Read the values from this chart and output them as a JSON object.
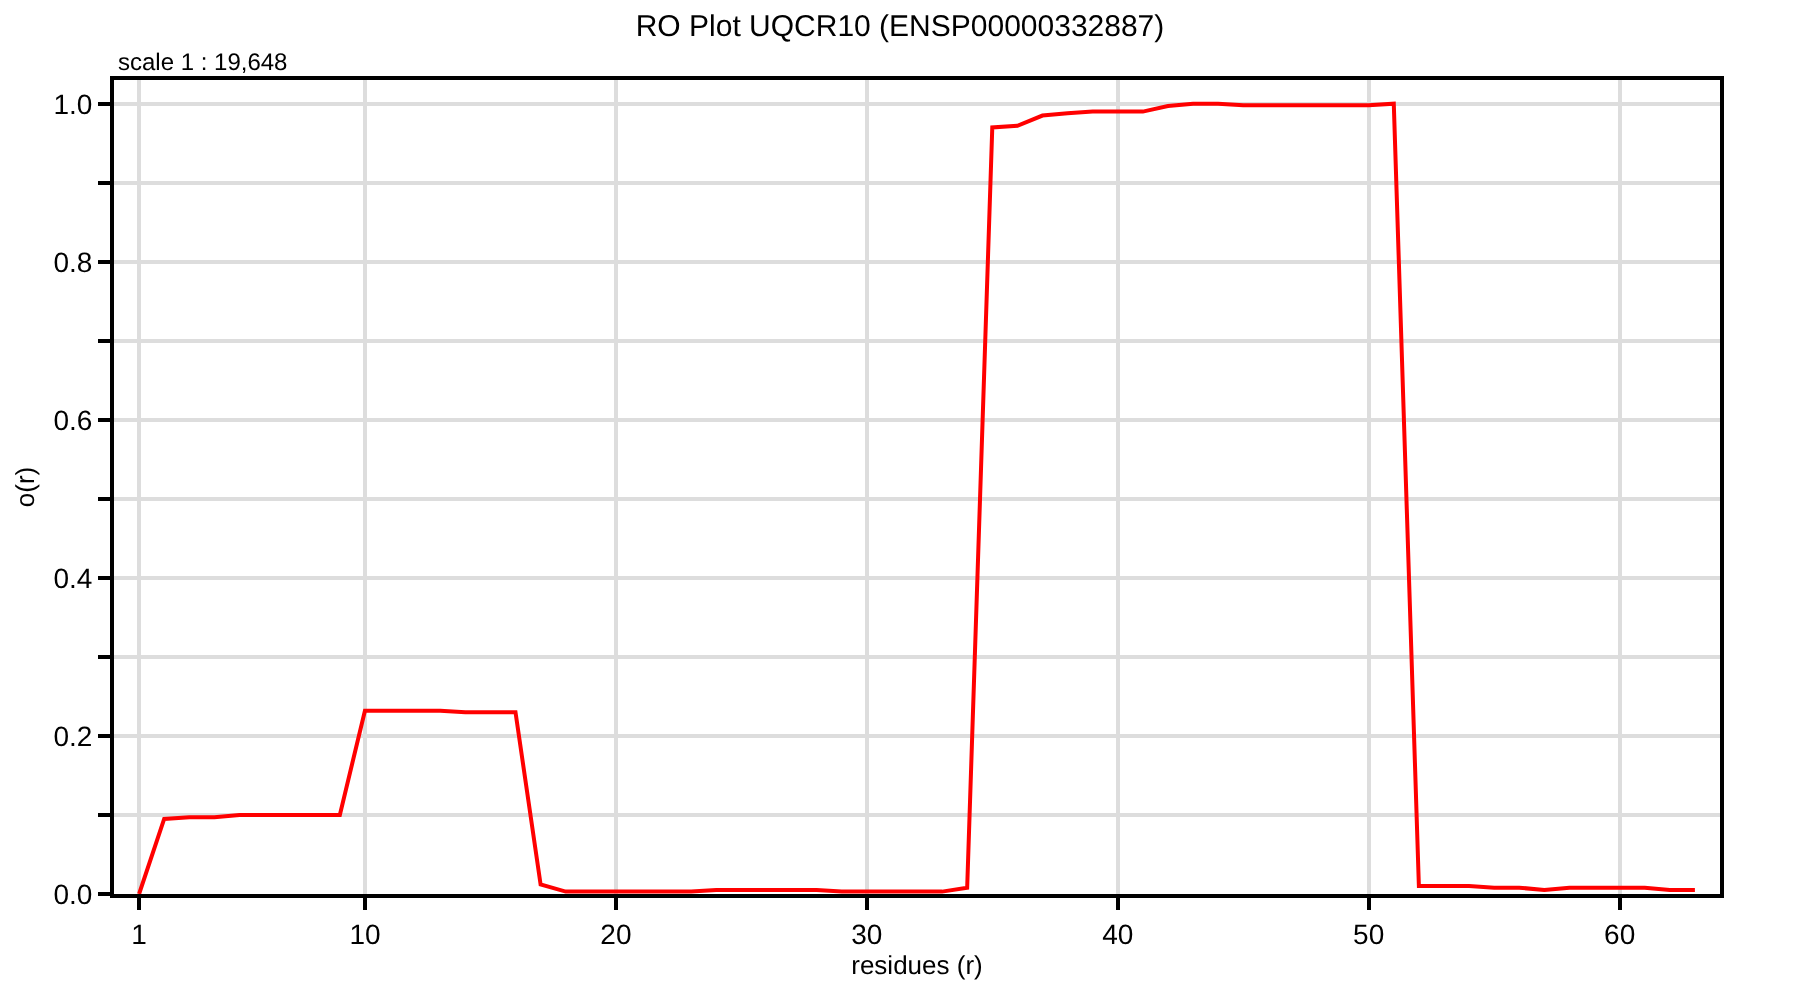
{
  "chart_data": {
    "type": "line",
    "title": "RO Plot UQCR10 (ENSP00000332887)",
    "xlabel": "residues (r)",
    "ylabel": "o(r)",
    "annotations": [
      "scale 1 : 19,648"
    ],
    "x": [
      1,
      2,
      3,
      4,
      5,
      6,
      7,
      8,
      9,
      10,
      11,
      12,
      13,
      14,
      15,
      16,
      17,
      18,
      19,
      20,
      21,
      22,
      23,
      24,
      25,
      26,
      27,
      28,
      29,
      30,
      31,
      32,
      33,
      34,
      35,
      36,
      37,
      38,
      39,
      40,
      41,
      42,
      43,
      44,
      45,
      46,
      47,
      48,
      49,
      50,
      51,
      52,
      53,
      54,
      55,
      56,
      57,
      58,
      59,
      60,
      61,
      62,
      63
    ],
    "series": [
      {
        "color": "#ff0000",
        "values": [
          0,
          0.095,
          0.097,
          0.097,
          0.1,
          0.1,
          0.1,
          0.1,
          0.1,
          0.232,
          0.232,
          0.232,
          0.232,
          0.23,
          0.23,
          0.23,
          0.012,
          0.003,
          0.003,
          0.003,
          0.003,
          0.003,
          0.003,
          0.005,
          0.005,
          0.005,
          0.005,
          0.005,
          0.003,
          0.003,
          0.003,
          0.003,
          0.003,
          0.008,
          0.97,
          0.972,
          0.985,
          0.988,
          0.99,
          0.99,
          0.99,
          0.997,
          1.0,
          1.0,
          0.998,
          0.998,
          0.998,
          0.998,
          0.998,
          0.998,
          1.0,
          0.01,
          0.01,
          0.01,
          0.008,
          0.008,
          0.005,
          0.008,
          0.008,
          0.008,
          0.008,
          0.005,
          0.005
        ]
      }
    ],
    "xlim": [
      0,
      64
    ],
    "ylim": [
      0,
      1.03
    ],
    "xticks": [
      1,
      10,
      20,
      30,
      40,
      50,
      60
    ],
    "yticks": [
      {
        "value": 0,
        "label": "0.0"
      },
      {
        "value": 0.1,
        "label": null
      },
      {
        "value": 0.2,
        "label": "0.2"
      },
      {
        "value": 0.3,
        "label": null
      },
      {
        "value": 0.4,
        "label": "0.4"
      },
      {
        "value": 0.5,
        "label": null
      },
      {
        "value": 0.6,
        "label": "0.6"
      },
      {
        "value": 0.7,
        "label": null
      },
      {
        "value": 0.8,
        "label": "0.8"
      },
      {
        "value": 0.9,
        "label": null
      },
      {
        "value": 1.0,
        "label": "1.0"
      }
    ],
    "grid": true,
    "line_style": "solid",
    "marker": "none"
  }
}
